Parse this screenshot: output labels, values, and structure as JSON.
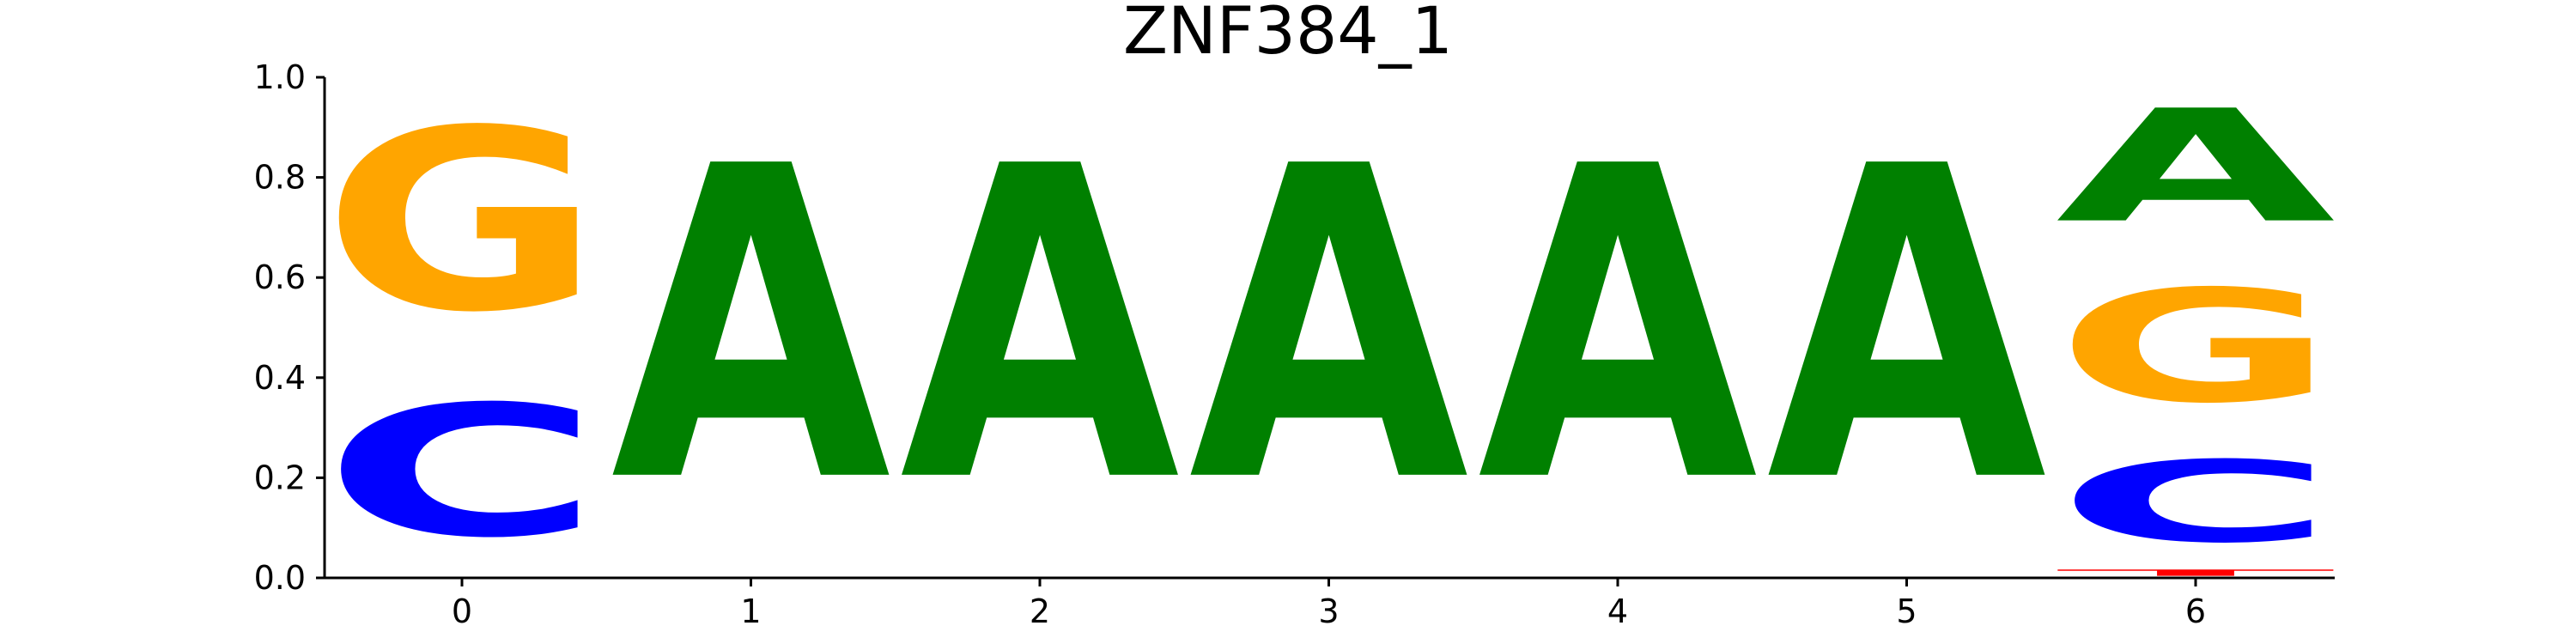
{
  "chart_data": {
    "type": "sequence-logo",
    "title": "ZNF384_1",
    "xlabel": "",
    "ylabel": "",
    "positions": [
      0,
      1,
      2,
      3,
      4,
      5,
      6
    ],
    "ylim": [
      0,
      1
    ],
    "yticks": [
      "0.0",
      "0.2",
      "0.4",
      "0.6",
      "0.8",
      "1.0"
    ],
    "xticks": [
      "0",
      "1",
      "2",
      "3",
      "4",
      "5",
      "6"
    ],
    "grid": false,
    "letter_colors": {
      "A": "#008000",
      "C": "#0000ff",
      "G": "#ffa500",
      "T": "#ff0000"
    },
    "stacks": [
      {
        "position": 0,
        "letters": [
          {
            "base": "C",
            "value": 0.42
          },
          {
            "base": "G",
            "value": 0.58
          }
        ]
      },
      {
        "position": 1,
        "letters": [
          {
            "base": "A",
            "value": 1.0
          }
        ]
      },
      {
        "position": 2,
        "letters": [
          {
            "base": "A",
            "value": 1.0
          }
        ]
      },
      {
        "position": 3,
        "letters": [
          {
            "base": "A",
            "value": 1.0
          }
        ]
      },
      {
        "position": 4,
        "letters": [
          {
            "base": "A",
            "value": 1.0
          }
        ]
      },
      {
        "position": 5,
        "letters": [
          {
            "base": "A",
            "value": 1.0
          }
        ]
      },
      {
        "position": 6,
        "letters": [
          {
            "base": "T",
            "value": 0.02
          },
          {
            "base": "C",
            "value": 0.26
          },
          {
            "base": "G",
            "value": 0.36
          },
          {
            "base": "A",
            "value": 0.36
          }
        ]
      }
    ]
  }
}
